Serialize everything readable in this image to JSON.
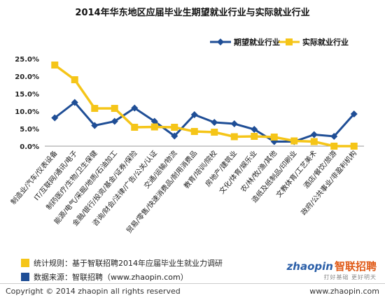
{
  "chart_data": {
    "type": "line",
    "title": "2014年华东地区应届毕业生期望就业行业与实际就业行业",
    "categories": [
      "制造业/汽车/仪表设备",
      "IT/互联网/通讯/电子",
      "制药医疗/生物/卫生保健",
      "能源/电气/采掘/地质/石油加工",
      "金融/银行/投资/基金/证券/保险",
      "咨询/财会/法律/广告/公关/认证",
      "交通/运输/物流",
      "贸易/零售/快速消费品/耐用消费品",
      "教育/培训/院校",
      "房地产/建筑业",
      "文化/体育/娱乐业",
      "农/林/牧/渔/其他",
      "造纸及纸制品/印刷业",
      "文教体育/工艺美术",
      "酒店/餐饮/旅游",
      "政府/公共事业/非盈利机构"
    ],
    "series": [
      {
        "name": "期望就业行业",
        "color": "#1f4e96",
        "marker": "diamond",
        "values": [
          8.1,
          12.5,
          5.9,
          7.1,
          10.9,
          7.1,
          2.9,
          9.0,
          6.8,
          6.4,
          4.8,
          1.3,
          1.3,
          3.3,
          2.8,
          9.2
        ]
      },
      {
        "name": "实际就业行业",
        "color": "#f5c518",
        "marker": "square",
        "values": [
          23.2,
          19.0,
          10.8,
          10.8,
          5.4,
          5.5,
          5.4,
          4.2,
          4.0,
          2.7,
          2.8,
          2.6,
          1.5,
          1.3,
          0.0,
          0.0
        ]
      }
    ],
    "y_ticks": [
      "0.0%",
      "5.0%",
      "10.0%",
      "15.0%",
      "20.0%",
      "25.0%"
    ],
    "ylim": [
      0,
      25
    ],
    "grid": false,
    "legend_position": "top-right"
  },
  "notes": [
    {
      "text": "统计规则：基于智联招聘2014年应届毕业生就业力调研",
      "color": "#f5c518"
    },
    {
      "text": "数据来源：智联招聘（www.zhaopin.com）",
      "color": "#1f4e96"
    }
  ],
  "copyright": "Copyright © 2014 zhaopin all rights reserved",
  "site_url": "www.zhaopin.com",
  "brand": {
    "latin": "zhaopin",
    "cn": "智联招聘",
    "tagline": "打好基础 更好明天"
  }
}
